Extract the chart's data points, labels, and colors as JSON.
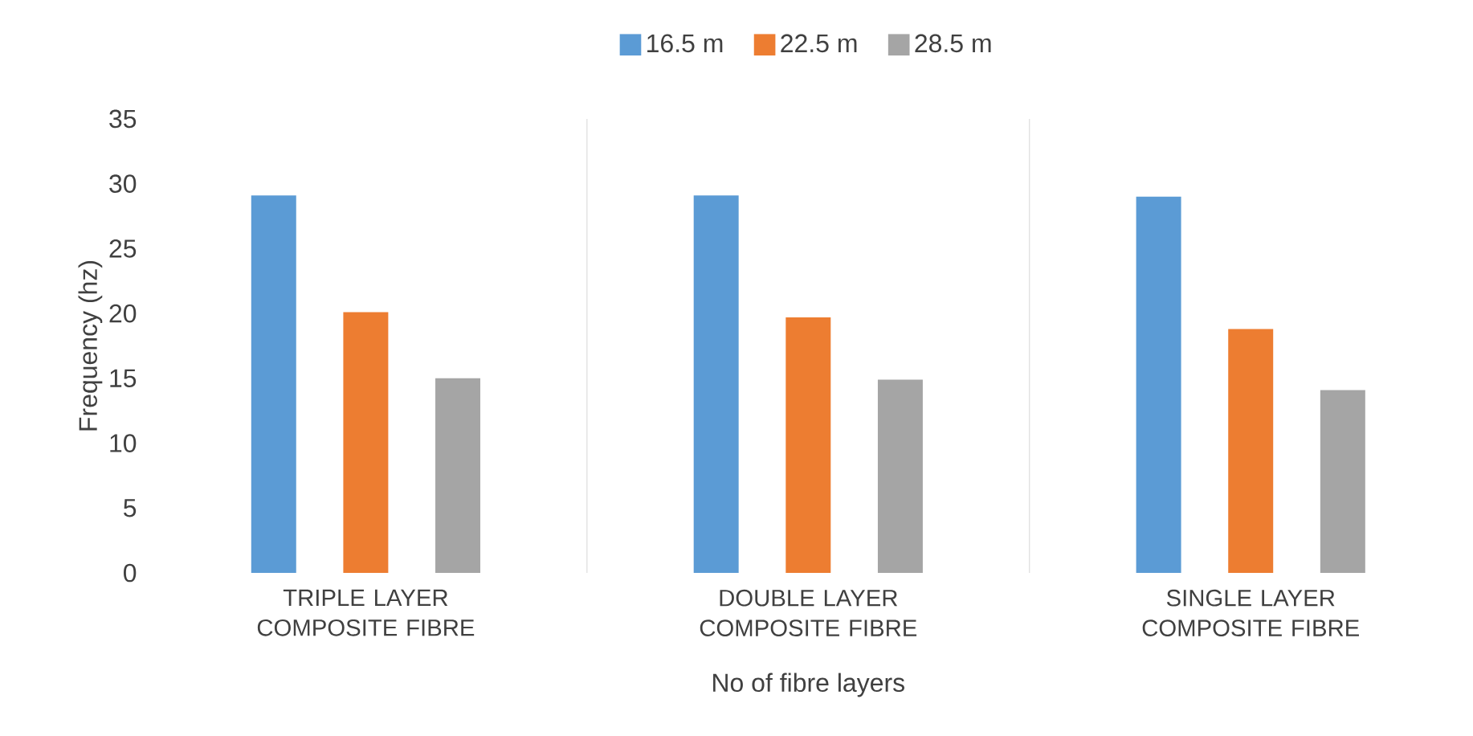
{
  "chart_data": {
    "type": "bar",
    "categories": [
      "TRIPLE LAYER COMPOSITE FIBRE",
      "DOUBLE LAYER COMPOSITE FIBRE",
      "SINGLE LAYER COMPOSITE FIBRE"
    ],
    "series": [
      {
        "name": "16.5 m",
        "color": "#5b9bd5",
        "values": [
          29.1,
          29.1,
          29.0
        ]
      },
      {
        "name": "22.5 m",
        "color": "#ed7d31",
        "values": [
          20.1,
          19.7,
          18.8
        ]
      },
      {
        "name": "28.5 m",
        "color": "#a5a5a5",
        "values": [
          15.0,
          14.9,
          14.1
        ]
      }
    ],
    "xlabel": "No of fibre layers",
    "ylabel": "Frequency (hz)",
    "ylim": [
      0,
      35
    ],
    "yticks": [
      0,
      5,
      10,
      15,
      20,
      25,
      30,
      35
    ],
    "grid": "x",
    "legend": "top"
  }
}
